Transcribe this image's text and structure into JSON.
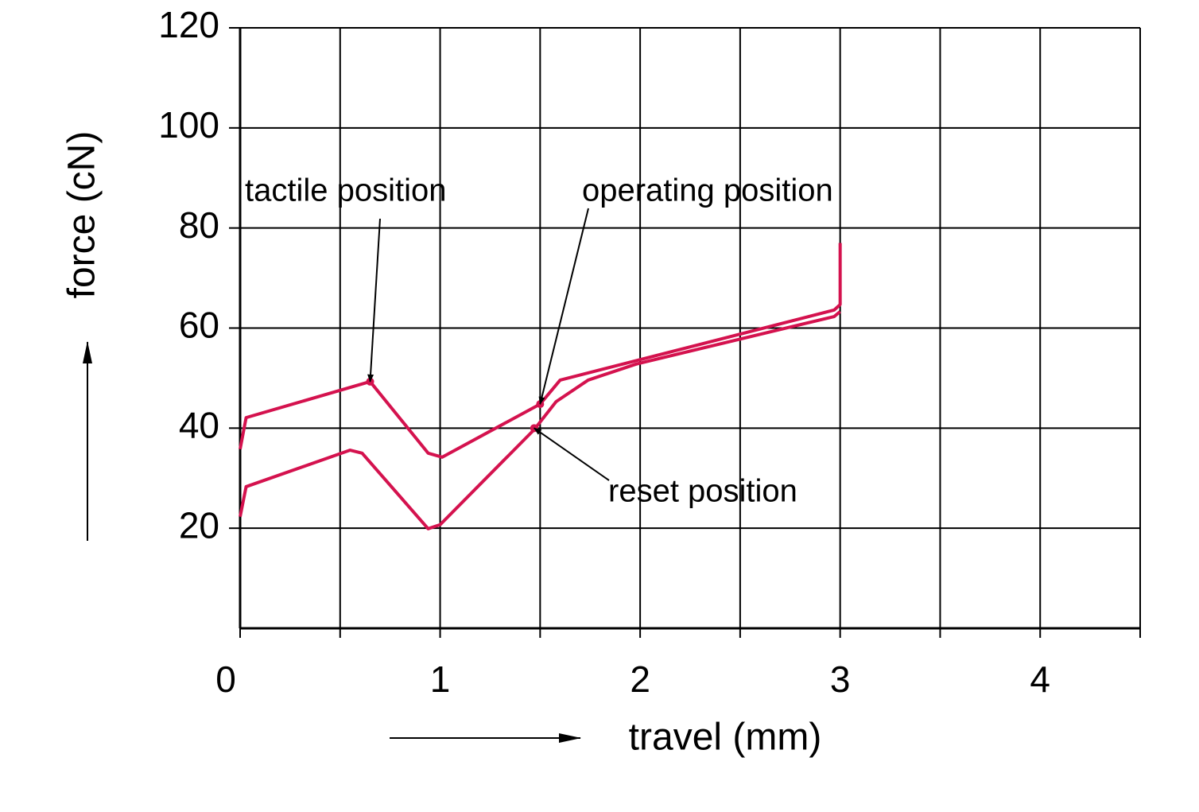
{
  "chart_data": {
    "type": "line",
    "xlabel": "travel (mm)",
    "ylabel": "force (cN)",
    "xlim": [
      0,
      4.5
    ],
    "xticks": [
      0,
      1,
      2,
      3,
      4
    ],
    "xminor_ticks": [
      0.5,
      1.5,
      2.5,
      3.5,
      4.5
    ],
    "ylim": [
      0,
      120
    ],
    "yticks": [
      20,
      40,
      60,
      80,
      100,
      120
    ],
    "grid": true,
    "series": [
      {
        "color": "#d4124e",
        "x": [
          0,
          0.03,
          0.65,
          0.94,
          1.01,
          1.5,
          1.6,
          2.97,
          3,
          3
        ],
        "values": [
          35.8,
          42.1,
          49.3,
          35,
          34.2,
          44.8,
          49.6,
          63.6,
          64.7,
          77
        ]
      },
      {
        "color": "#d4124e",
        "x": [
          0,
          0.03,
          0.55,
          0.61,
          0.94,
          1.0,
          1.47,
          1.58,
          1.74,
          1.98,
          2.97,
          3
        ],
        "values": [
          22.3,
          28.3,
          35.6,
          35,
          19.9,
          20.7,
          39.7,
          45.3,
          49.6,
          52.8,
          62.3,
          63.3
        ]
      }
    ],
    "annotations": [
      {
        "text": "tactile position",
        "x": 0.65,
        "y": 49.3
      },
      {
        "text": "operating position",
        "x": 1.5,
        "y": 44.8
      },
      {
        "text": "reset position",
        "x": 1.47,
        "y": 40
      }
    ]
  }
}
